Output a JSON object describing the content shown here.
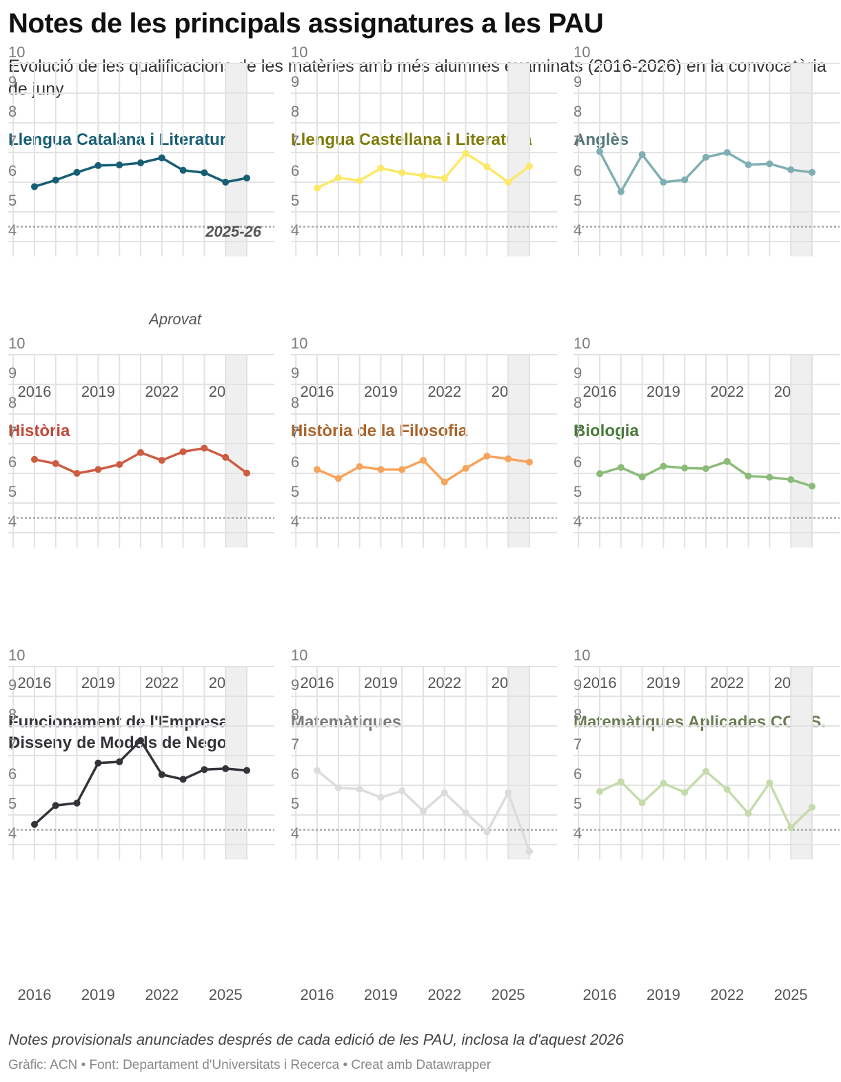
{
  "title": "Notes de les principals assignatures a les PAU",
  "subtitle": "Evolució de les qualificacions de les matèries amb més alumnes examinats (2016-2026) en la convocatòria de juny",
  "note": "Notes provisionals anunciades després de cada edició de les PAU, inclosa la d'aquest 2026",
  "credit": "Gràfic: ACN • Font: Departament d'Universitats i Recerca • Creat amb Datawrapper",
  "chart_data": {
    "type": "line",
    "x": [
      2016,
      2017,
      2018,
      2019,
      2020,
      2021,
      2022,
      2023,
      2024,
      2025,
      2026
    ],
    "x_tick_labels": [
      "2016",
      "2019",
      "2022",
      "2025"
    ],
    "y_tick_labels": [
      "10",
      "9",
      "8",
      "7",
      "6",
      "5",
      "4"
    ],
    "ylim": [
      3.5,
      10
    ],
    "pass_line": 4.5,
    "pass_label": "Aprovat",
    "highlight_label": "2025-26",
    "highlight_range": [
      2025,
      2026
    ],
    "series": [
      {
        "name": "Llengua Catalana i Literatura",
        "color": "#175e74",
        "title_color": "#175e74",
        "values": [
          5.85,
          6.07,
          6.33,
          6.56,
          6.58,
          6.65,
          6.82,
          6.4,
          6.32,
          6.0,
          6.14
        ]
      },
      {
        "name": "Llengua Castellana i Literatura",
        "color": "#fbe967",
        "title_color": "#7d7b06",
        "values": [
          5.8,
          6.15,
          6.05,
          6.47,
          6.32,
          6.22,
          6.13,
          6.97,
          6.52,
          6.0,
          6.54
        ]
      },
      {
        "name": "Anglès",
        "color": "#7fafb2",
        "title_color": "#54777a",
        "values": [
          7.03,
          5.68,
          6.93,
          6.0,
          6.08,
          6.84,
          7.0,
          6.59,
          6.62,
          6.42,
          6.33
        ]
      },
      {
        "name": "Història",
        "color": "#cd5d42",
        "title_color": "#c0493c",
        "values": [
          6.47,
          6.33,
          6.0,
          6.13,
          6.3,
          6.7,
          6.44,
          6.73,
          6.85,
          6.54,
          6.01
        ]
      },
      {
        "name": "Història de la Filosofia",
        "color": "#f8a35b",
        "title_color": "#a9642a",
        "values": [
          6.13,
          5.83,
          6.23,
          6.13,
          6.13,
          6.44,
          5.71,
          6.17,
          6.58,
          6.49,
          6.38
        ]
      },
      {
        "name": "Biologia",
        "color": "#8bbb79",
        "title_color": "#4a7a3a",
        "values": [
          5.99,
          6.2,
          5.88,
          6.24,
          6.18,
          6.16,
          6.4,
          5.91,
          5.87,
          5.79,
          5.57
        ]
      },
      {
        "name": "Funcionament de l'Empresa i Disseny de Models de Negoci",
        "color": "#333339",
        "title_color": "#333339",
        "values": [
          4.68,
          5.32,
          5.4,
          6.75,
          6.79,
          7.51,
          6.36,
          6.2,
          6.53,
          6.56,
          6.5
        ]
      },
      {
        "name": "Matemàtiques",
        "color": "#dcdcdc",
        "title_color": "#7a7a7a",
        "values": [
          6.5,
          5.92,
          5.87,
          5.59,
          5.81,
          5.13,
          5.75,
          5.07,
          4.43,
          5.75,
          3.77
        ]
      },
      {
        "name": "Matemàtiques Aplicades CC.SS.",
        "color": "#c5dbab",
        "title_color": "#6b7d54",
        "values": [
          5.79,
          6.12,
          5.41,
          6.07,
          5.76,
          6.47,
          5.86,
          5.05,
          6.08,
          4.57,
          5.26
        ]
      }
    ]
  }
}
